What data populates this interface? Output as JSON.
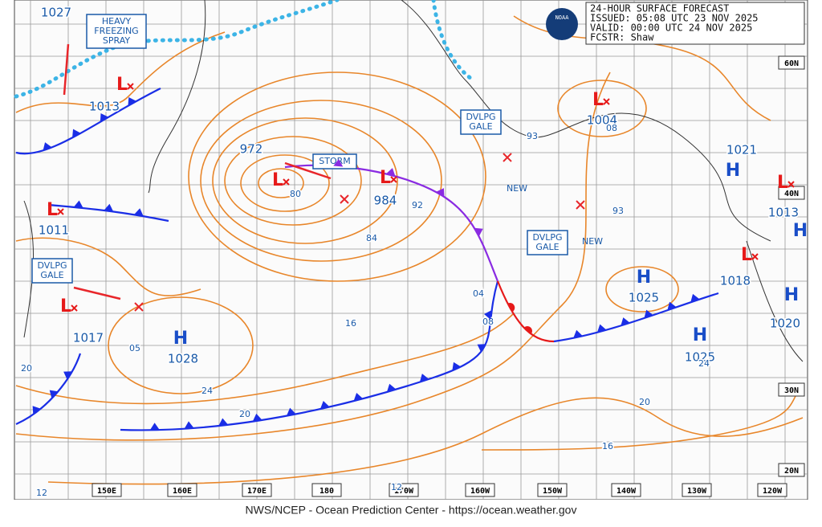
{
  "header": {
    "lines": [
      "24-HOUR SURFACE FORECAST",
      "ISSUED: 05:08 UTC 23 NOV 2025",
      "VALID:  00:00 UTC 24 NOV 2025",
      "FCSTR:  Shaw"
    ],
    "logo": "NOAA"
  },
  "longitude_labels": [
    "150E",
    "160E",
    "170E",
    "180",
    "170W",
    "160W",
    "150W",
    "140W",
    "130W",
    "120W"
  ],
  "latitude_labels": [
    "60N",
    "40N",
    "30N",
    "20N"
  ],
  "lows": [
    "L",
    "L",
    "L",
    "L",
    "L",
    "L",
    "L",
    "L"
  ],
  "highs": [
    "H",
    "H",
    "H",
    "H",
    "H",
    "H"
  ],
  "isobar_labels": [
    "1027",
    "1013",
    "972",
    "80",
    "984",
    "92",
    "84",
    "1011",
    "1017",
    "05",
    "1028",
    "24",
    "20",
    "16",
    "04",
    "08",
    "93",
    "93",
    "1004",
    "08",
    "1021",
    "1013",
    "1018",
    "1025",
    "1025",
    "24",
    "20",
    "16",
    "12",
    "12",
    "20",
    "1020"
  ],
  "warning_boxes": [
    {
      "text": [
        "HEAVY",
        "FREEZING",
        "SPRAY"
      ]
    },
    {
      "text": [
        "STORM"
      ]
    },
    {
      "text": [
        "DVLPG",
        "GALE"
      ]
    },
    {
      "text": [
        "DVLPG",
        "GALE"
      ]
    },
    {
      "text": [
        "DVLPG",
        "GALE"
      ]
    }
  ],
  "new_labels": [
    "NEW",
    "NEW"
  ],
  "footer": "NWS/NCEP - Ocean Prediction Center - https://ocean.weather.gov"
}
